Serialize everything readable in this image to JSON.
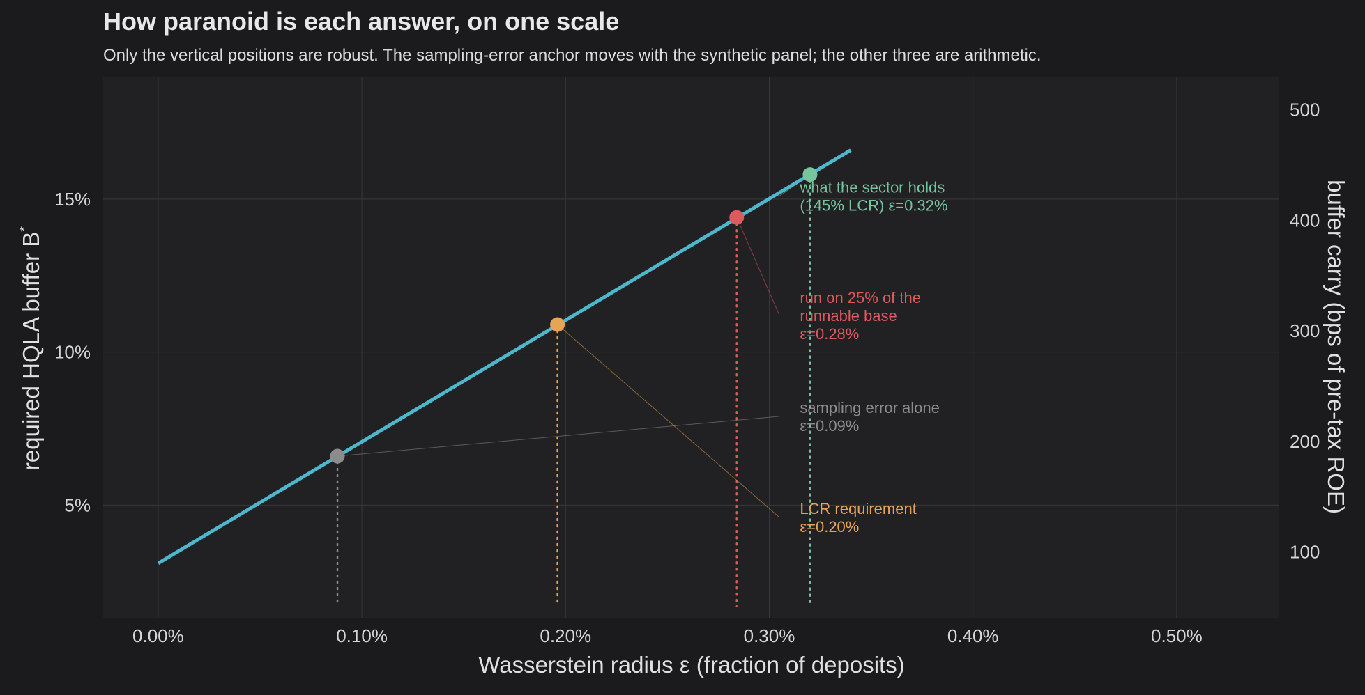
{
  "chart_data": {
    "type": "line",
    "title": "How paranoid is each answer, on one scale",
    "subtitle": "Only the vertical positions are robust. The sampling-error anchor moves with the synthetic panel; the other three are arithmetic.",
    "xlabel": "Wasserstein radius ε (fraction of deposits)",
    "ylabel": "required HQLA buffer B",
    "ylabel_superscript": "*",
    "y2label": "buffer carry (bps of pre-tax ROE)",
    "xlim": [
      -0.00027,
      0.0055
    ],
    "ylim": [
      0.013,
      0.19
    ],
    "y2lim": [
      40,
      530
    ],
    "xticks": [
      0.0,
      0.001,
      0.002,
      0.003,
      0.004,
      0.005
    ],
    "xtick_labels": [
      "0.00%",
      "0.10%",
      "0.20%",
      "0.30%",
      "0.40%",
      "0.50%"
    ],
    "yticks": [
      0.05,
      0.1,
      0.15
    ],
    "ytick_labels": [
      "5%",
      "10%",
      "15%"
    ],
    "y2ticks": [
      100,
      200,
      300,
      400,
      500
    ],
    "y2tick_labels": [
      "100",
      "200",
      "300",
      "400",
      "500"
    ],
    "grid": true,
    "series": [
      {
        "x": [
          0.0,
          0.0034
        ],
        "y": [
          0.031,
          0.166
        ],
        "color": "#4db8cc"
      }
    ],
    "points": [
      {
        "x": 0.00088,
        "y": 0.066,
        "color": "#8c8c8c",
        "label_lines": [
          "sampling error alone",
          "ε=0.09%"
        ],
        "label_anchor_y": 0.079
      },
      {
        "x": 0.00196,
        "y": 0.109,
        "color": "#e6a556",
        "label_lines": [
          "LCR requirement",
          "ε=0.20%"
        ],
        "label_anchor_y": 0.046
      },
      {
        "x": 0.00284,
        "y": 0.144,
        "color": "#dd5a5e",
        "label_lines": [
          "run on 25% of the",
          "runnable base",
          "ε=0.28%"
        ],
        "label_anchor_y": 0.112
      },
      {
        "x": 0.0032,
        "y": 0.158,
        "color": "#77c59e",
        "label_lines": [
          "what the sector holds",
          "(145% LCR)  ε=0.32%"
        ],
        "label_anchor_y": 0.151
      }
    ],
    "colors": {
      "background": "#1b1b1d",
      "panel": "#212124",
      "grid": "#38383c",
      "line": "#4db8cc"
    }
  }
}
